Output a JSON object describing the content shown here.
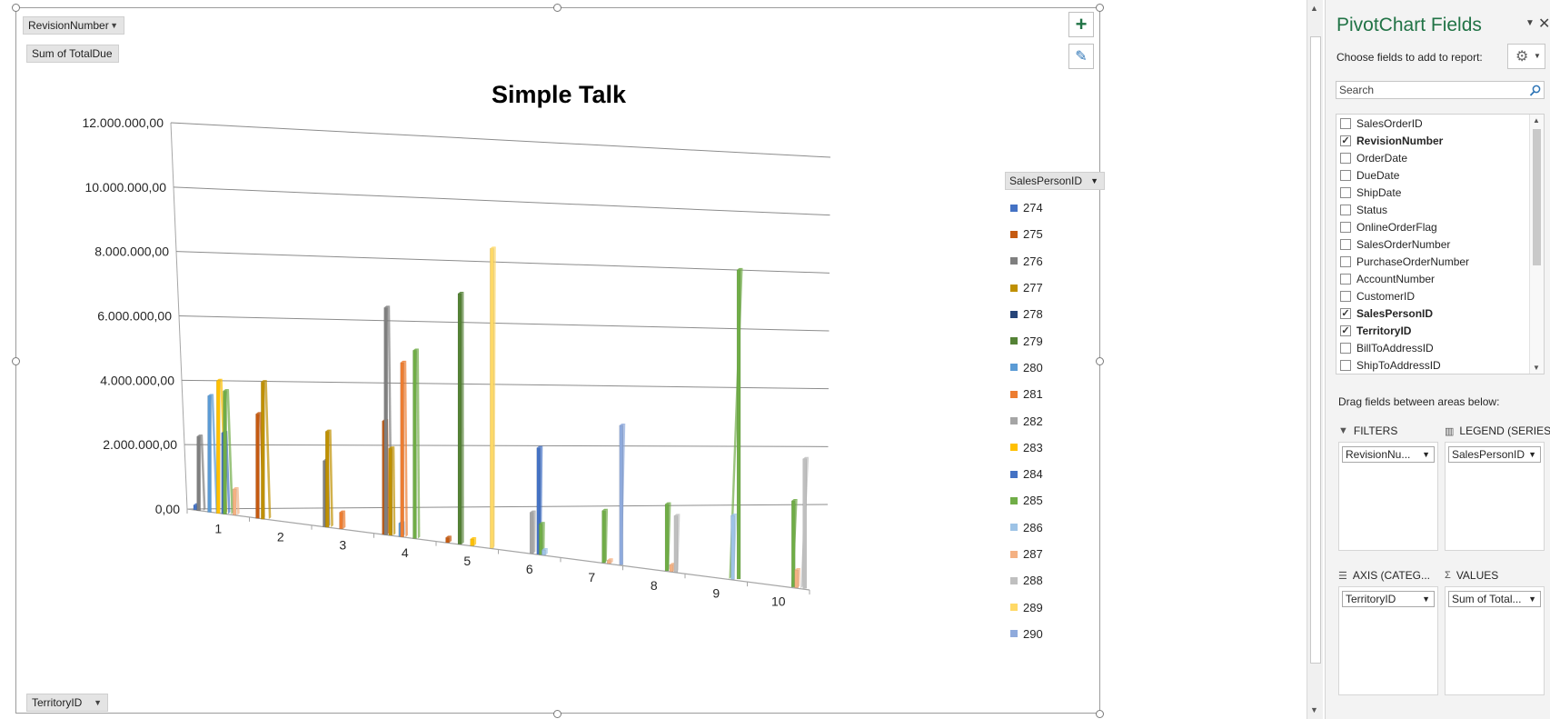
{
  "filter_button": "RevisionNumber",
  "values_button": "Sum of TotalDue",
  "axis_button": "TerritoryID",
  "legend_button": "SalesPersonID",
  "tools": {
    "add_symbol": "+",
    "brush_symbol": "✎"
  },
  "chart_data": {
    "type": "bar",
    "title": "Simple Talk",
    "categories": [
      "1",
      "2",
      "3",
      "4",
      "5",
      "6",
      "7",
      "8",
      "9",
      "10"
    ],
    "y_ticks": [
      "12.000.000,00",
      "10.000.000,00",
      "8.000.000,00",
      "6.000.000,00",
      "4.000.000,00",
      "2.000.000,00",
      "0,00"
    ],
    "ylim": [
      0,
      12000000
    ],
    "legend_title": "SalesPersonID",
    "series": [
      {
        "name": "274",
        "color": "#4472c4",
        "values": [
          150000,
          0,
          0,
          0,
          0,
          0,
          0,
          0,
          0,
          0
        ]
      },
      {
        "name": "275",
        "color": "#c55a11",
        "values": [
          0,
          3200000,
          0,
          3400000,
          150000,
          0,
          0,
          0,
          0,
          0
        ]
      },
      {
        "name": "276",
        "color": "#7f7f7f",
        "values": [
          2300000,
          0,
          2000000,
          6800000,
          0,
          0,
          0,
          0,
          0,
          0
        ]
      },
      {
        "name": "277",
        "color": "#bf9000",
        "values": [
          0,
          4200000,
          2900000,
          2600000,
          0,
          0,
          0,
          0,
          0,
          0
        ]
      },
      {
        "name": "278",
        "color": "#264478",
        "values": [
          0,
          0,
          0,
          0,
          0,
          0,
          0,
          0,
          0,
          0
        ]
      },
      {
        "name": "279",
        "color": "#548235",
        "values": [
          0,
          0,
          0,
          0,
          7400000,
          0,
          0,
          0,
          0,
          0
        ]
      },
      {
        "name": "280",
        "color": "#5b9bd5",
        "values": [
          3600000,
          0,
          0,
          400000,
          0,
          0,
          0,
          0,
          0,
          0
        ]
      },
      {
        "name": "281",
        "color": "#ed7d31",
        "values": [
          0,
          0,
          500000,
          5200000,
          0,
          0,
          0,
          0,
          0,
          0
        ]
      },
      {
        "name": "282",
        "color": "#a5a5a5",
        "values": [
          0,
          0,
          0,
          0,
          0,
          1200000,
          0,
          0,
          0,
          0
        ]
      },
      {
        "name": "283",
        "color": "#ffc000",
        "values": [
          4100000,
          0,
          0,
          0,
          200000,
          0,
          0,
          0,
          0,
          0
        ]
      },
      {
        "name": "284",
        "color": "#4472c4",
        "values": [
          2500000,
          0,
          0,
          0,
          0,
          3100000,
          0,
          0,
          0,
          0
        ]
      },
      {
        "name": "285",
        "color": "#70ad47",
        "values": [
          3800000,
          0,
          0,
          5600000,
          0,
          900000,
          1500000,
          1900000,
          8700000,
          2400000
        ]
      },
      {
        "name": "286",
        "color": "#9dc3e6",
        "values": [
          0,
          0,
          0,
          0,
          0,
          150000,
          0,
          0,
          1800000,
          0
        ]
      },
      {
        "name": "287",
        "color": "#f4b183",
        "values": [
          800000,
          0,
          0,
          0,
          0,
          0,
          100000,
          200000,
          0,
          500000
        ]
      },
      {
        "name": "288",
        "color": "#bfbfbf",
        "values": [
          0,
          0,
          0,
          0,
          0,
          0,
          0,
          1600000,
          0,
          3600000
        ]
      },
      {
        "name": "289",
        "color": "#ffd966",
        "values": [
          0,
          0,
          0,
          0,
          8800000,
          0,
          0,
          0,
          0,
          0
        ]
      },
      {
        "name": "290",
        "color": "#8faadc",
        "values": [
          0,
          0,
          0,
          0,
          0,
          0,
          4000000,
          0,
          0,
          0
        ]
      }
    ]
  },
  "panel": {
    "title": "PivotChart Fields",
    "choose_label": "Choose fields to add to report:",
    "search_placeholder": "Search",
    "fields": [
      {
        "label": "SalesOrderID",
        "checked": false
      },
      {
        "label": "RevisionNumber",
        "checked": true
      },
      {
        "label": "OrderDate",
        "checked": false
      },
      {
        "label": "DueDate",
        "checked": false
      },
      {
        "label": "ShipDate",
        "checked": false
      },
      {
        "label": "Status",
        "checked": false
      },
      {
        "label": "OnlineOrderFlag",
        "checked": false
      },
      {
        "label": "SalesOrderNumber",
        "checked": false
      },
      {
        "label": "PurchaseOrderNumber",
        "checked": false
      },
      {
        "label": "AccountNumber",
        "checked": false
      },
      {
        "label": "CustomerID",
        "checked": false
      },
      {
        "label": "SalesPersonID",
        "checked": true
      },
      {
        "label": "TerritoryID",
        "checked": true
      },
      {
        "label": "BillToAddressID",
        "checked": false
      },
      {
        "label": "ShipToAddressID",
        "checked": false
      }
    ],
    "drag_label": "Drag fields between areas below:",
    "areas": {
      "filters": {
        "label": "FILTERS",
        "value": "RevisionNu..."
      },
      "legend": {
        "label": "LEGEND (SERIES)",
        "value": "SalesPersonID"
      },
      "axis": {
        "label": "AXIS (CATEG...",
        "value": "TerritoryID"
      },
      "values": {
        "label": "VALUES",
        "value": "Sum of Total..."
      }
    }
  }
}
